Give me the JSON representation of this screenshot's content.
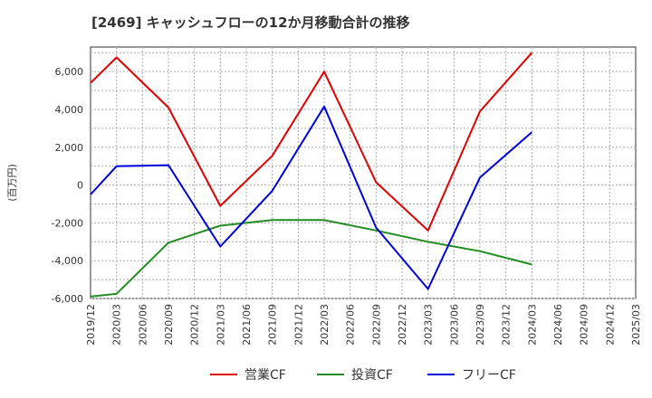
{
  "chart_data": {
    "type": "line",
    "title": "[2469]  キャッシュフローの12か月移動合計の推移",
    "ylabel": "(百万円)",
    "xlabel": "",
    "ylim": [
      -6000,
      7300
    ],
    "yticks": [
      6000,
      4000,
      2000,
      0,
      -2000,
      -4000,
      -6000
    ],
    "ytick_labels": [
      "6,000",
      "4,000",
      "2,000",
      "0",
      "-2,000",
      "-4,000",
      "-6,000"
    ],
    "grid": true,
    "legend_position": "bottom",
    "categories": [
      "2019/12",
      "2020/03",
      "2020/06",
      "2020/09",
      "2020/12",
      "2021/03",
      "2021/06",
      "2021/09",
      "2021/12",
      "2022/03",
      "2022/06",
      "2022/09",
      "2022/12",
      "2023/03",
      "2023/06",
      "2023/09",
      "2023/12",
      "2024/03",
      "2024/06",
      "2024/09",
      "2024/12",
      "2025/03"
    ],
    "series": [
      {
        "name": "営業CF",
        "color": "#e00000",
        "values": [
          5400,
          6750,
          null,
          4100,
          null,
          -1100,
          null,
          1550,
          null,
          6000,
          null,
          150,
          null,
          -2400,
          null,
          3900,
          null,
          7000,
          null,
          null,
          null,
          null
        ]
      },
      {
        "name": "投資CF",
        "color": "#228b22",
        "values": [
          -5900,
          -5750,
          null,
          -3050,
          null,
          -2150,
          null,
          -1850,
          null,
          -1850,
          null,
          -2400,
          null,
          -3000,
          null,
          -3500,
          null,
          -4200,
          null,
          null,
          null,
          null
        ]
      },
      {
        "name": "フリーCF",
        "color": "#0000dd",
        "values": [
          -500,
          1000,
          null,
          1050,
          null,
          -3250,
          null,
          -300,
          null,
          4150,
          null,
          -2250,
          null,
          -5500,
          null,
          400,
          null,
          2800,
          null,
          null,
          null,
          null
        ]
      }
    ]
  }
}
